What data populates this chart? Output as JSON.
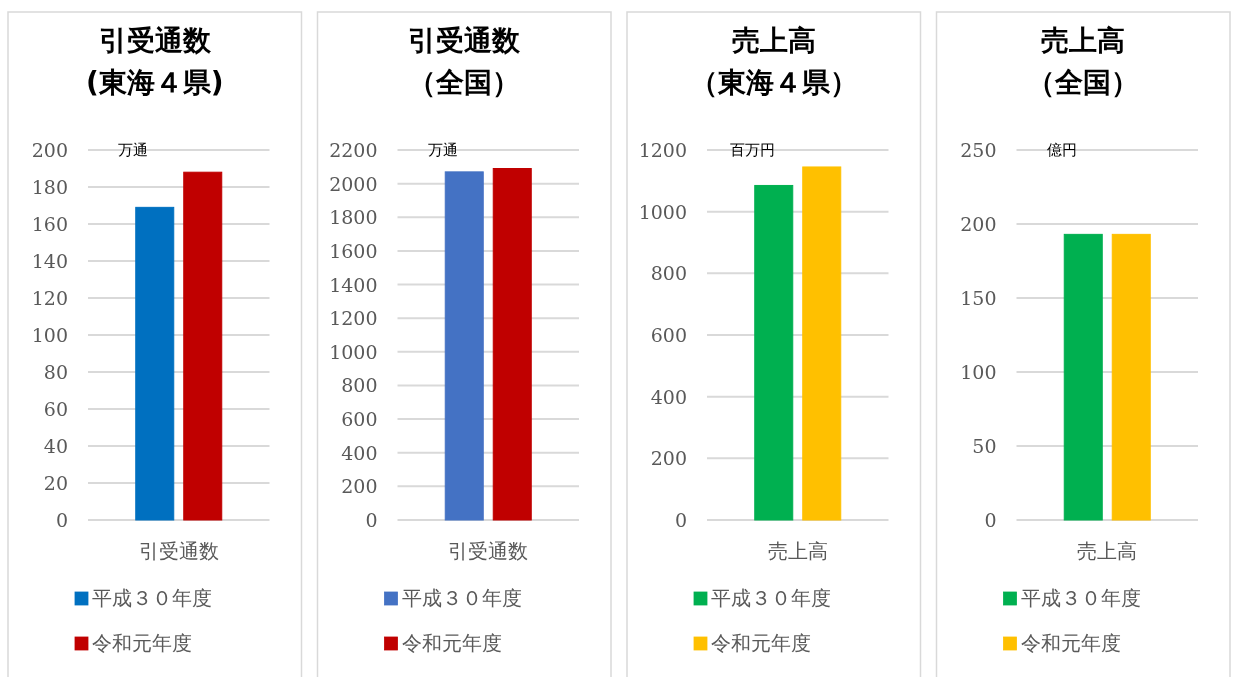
{
  "chart_data": [
    {
      "type": "bar",
      "title": "引受通数",
      "subtitle": "(東海４県)",
      "ylabel": "万通",
      "categories": [
        "引受通数"
      ],
      "series": [
        {
          "name": "平成３０年度",
          "color": "#0070c0",
          "values": [
            169
          ]
        },
        {
          "name": "令和元年度",
          "color": "#c00000",
          "values": [
            188
          ]
        }
      ],
      "ylim": [
        0,
        200
      ],
      "yticks": [
        0,
        20,
        40,
        60,
        80,
        100,
        120,
        140,
        160,
        180,
        200
      ],
      "grid": "y",
      "legend": "bottom"
    },
    {
      "type": "bar",
      "title": "引受通数",
      "subtitle": "（全国）",
      "ylabel": "万通",
      "categories": [
        "引受通数"
      ],
      "series": [
        {
          "name": "平成３０年度",
          "color": "#4472c4",
          "values": [
            2070
          ]
        },
        {
          "name": "令和元年度",
          "color": "#c00000",
          "values": [
            2090
          ]
        }
      ],
      "ylim": [
        0,
        2200
      ],
      "yticks": [
        0,
        200,
        400,
        600,
        800,
        1000,
        1200,
        1400,
        1600,
        1800,
        2000,
        2200
      ],
      "grid": "y",
      "legend": "bottom"
    },
    {
      "type": "bar",
      "title": "売上高",
      "subtitle": "（東海４県）",
      "ylabel": "百万円",
      "categories": [
        "売上高"
      ],
      "series": [
        {
          "name": "平成３０年度",
          "color": "#00b050",
          "values": [
            1085
          ]
        },
        {
          "name": "令和元年度",
          "color": "#ffc000",
          "values": [
            1145
          ]
        }
      ],
      "ylim": [
        0,
        1200
      ],
      "yticks": [
        0,
        200,
        400,
        600,
        800,
        1000,
        1200
      ],
      "grid": "y",
      "legend": "bottom"
    },
    {
      "type": "bar",
      "title": "売上高",
      "subtitle": "（全国）",
      "ylabel": "億円",
      "categories": [
        "売上高"
      ],
      "series": [
        {
          "name": "平成３０年度",
          "color": "#00b050",
          "values": [
            193
          ]
        },
        {
          "name": "令和元年度",
          "color": "#ffc000",
          "values": [
            193
          ]
        }
      ],
      "ylim": [
        0,
        250
      ],
      "yticks": [
        0,
        50,
        100,
        150,
        200,
        250
      ],
      "grid": "y",
      "legend": "bottom"
    }
  ]
}
